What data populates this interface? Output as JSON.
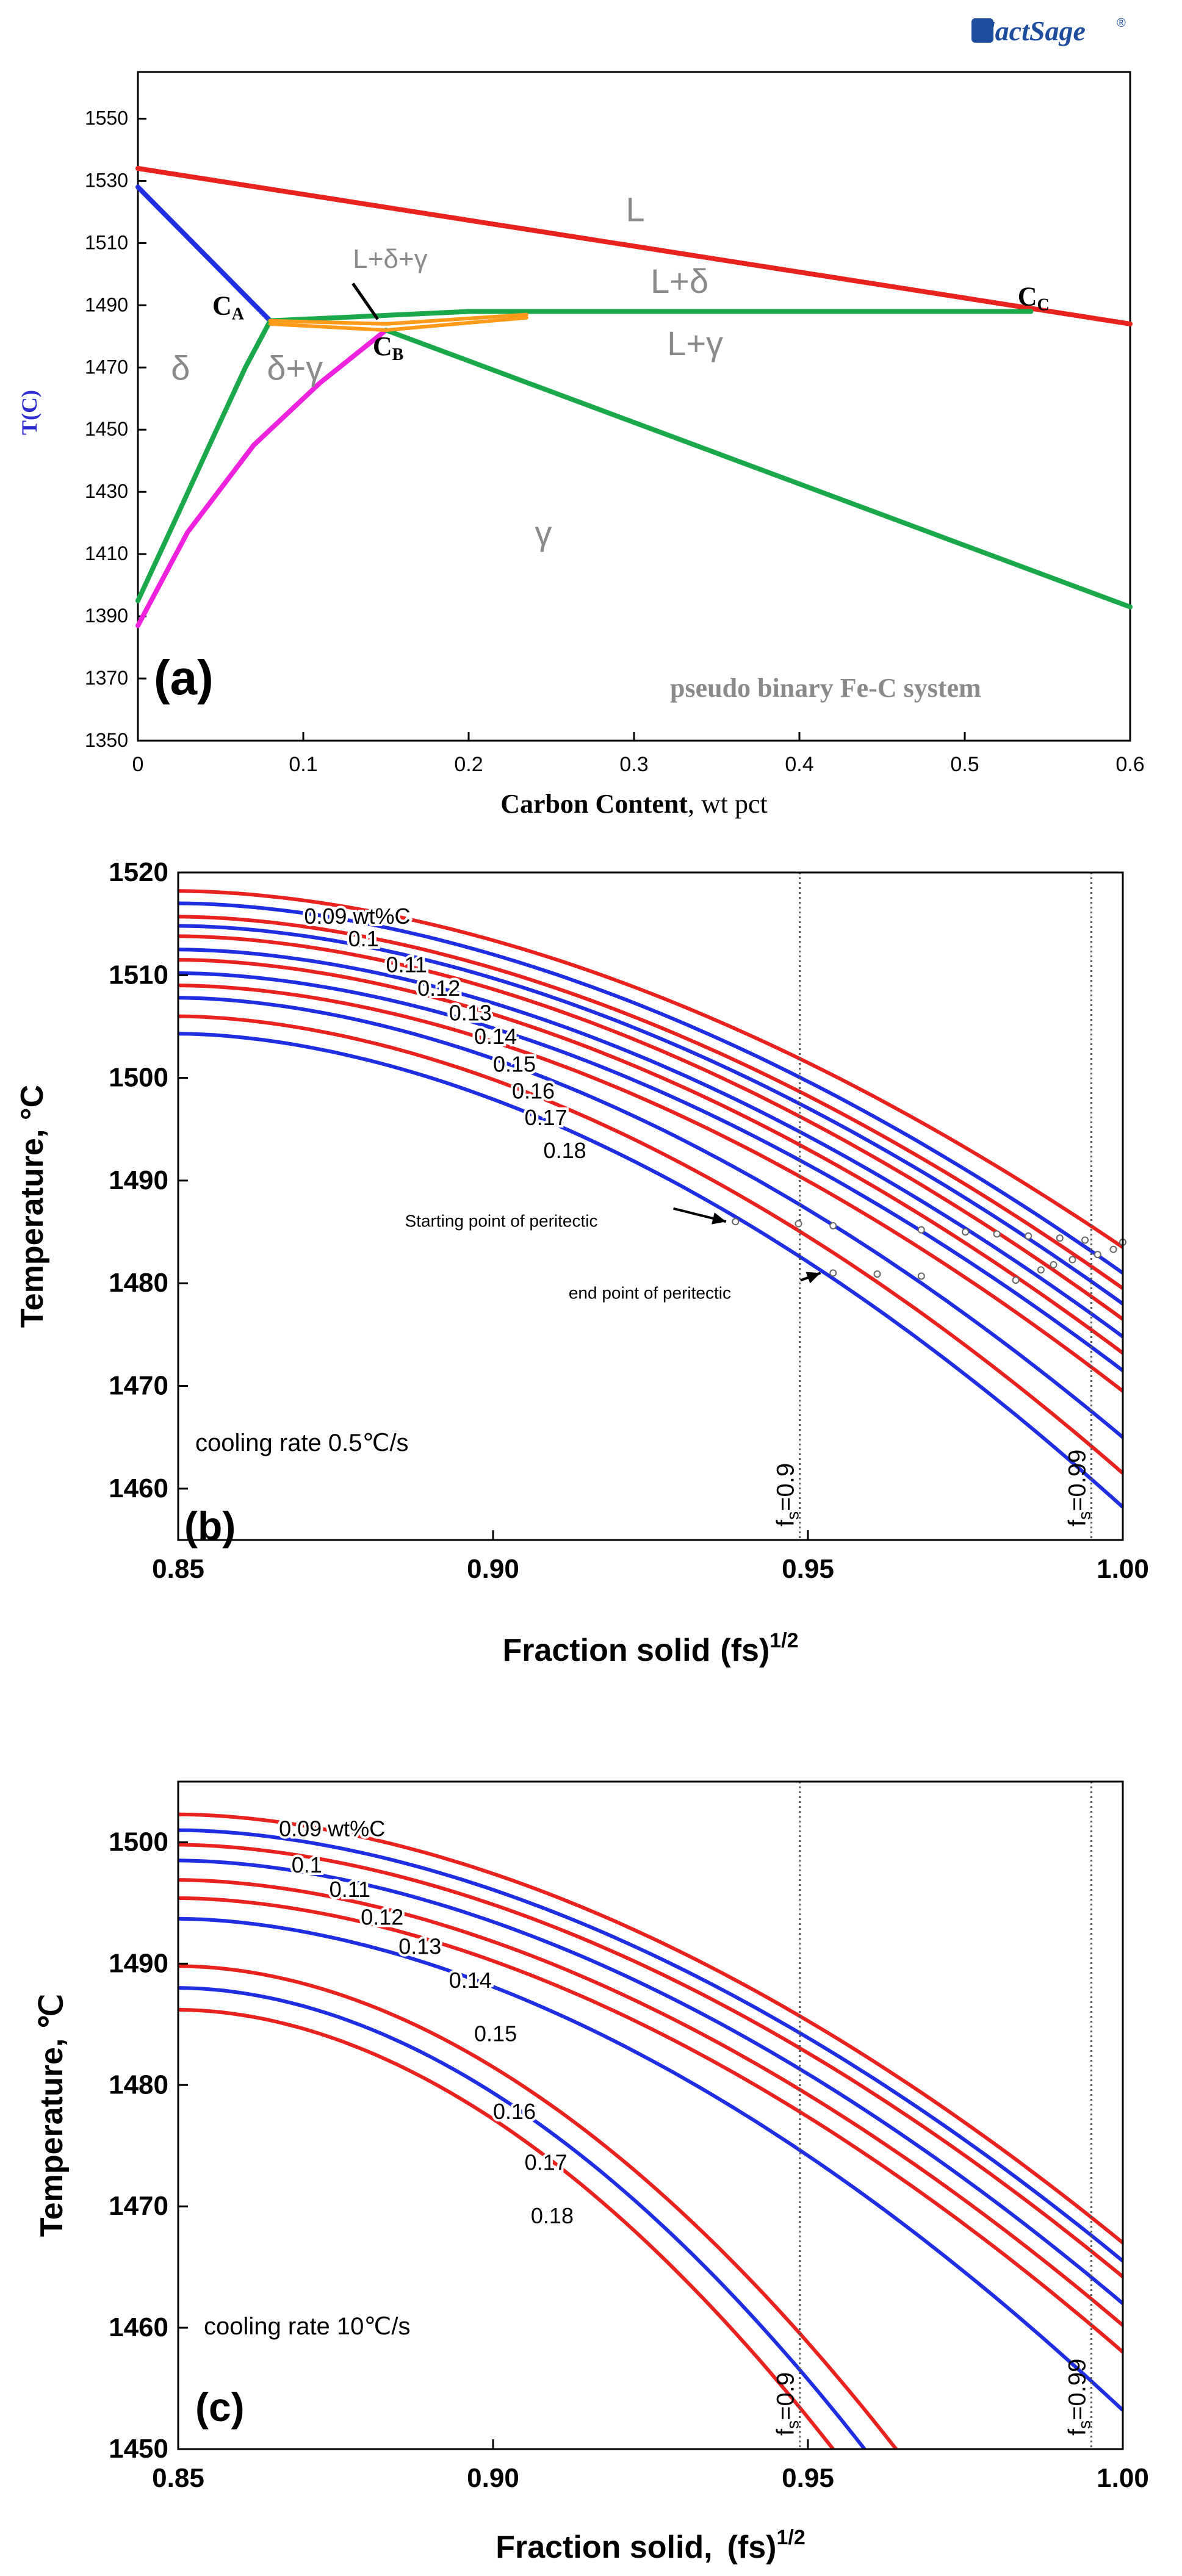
{
  "figure": {
    "logo_text": "FactSage",
    "logo_mark": "®"
  },
  "colors": {
    "red": "#e8231f",
    "blue": "#1f2ee0",
    "green": "#1aa84a",
    "magenta": "#ee22dd",
    "orange": "#ff9a1a",
    "label_gray": "#8a8a8a",
    "ylabel_blue": "#2c2cd0"
  },
  "chart_data": [
    {
      "type": "line",
      "panel_label": "(a)",
      "title": "pseudo binary Fe-C system",
      "xlabel": "Carbon Content",
      "xlabel_unit": ", wt pct",
      "ylabel": "T(C)",
      "xlim": [
        0,
        0.6
      ],
      "ylim": [
        1350,
        1565
      ],
      "xticks": [
        0,
        0.1,
        0.2,
        0.3,
        0.4,
        0.5,
        0.6
      ],
      "xtick_labels": [
        "0",
        "0.1",
        "0.2",
        "0.3",
        "0.4",
        "0.5",
        "0.6"
      ],
      "yticks": [
        1350,
        1370,
        1390,
        1410,
        1430,
        1450,
        1470,
        1490,
        1510,
        1530,
        1550
      ],
      "series": [
        {
          "name": "liquidus",
          "color": "red",
          "points": [
            [
              0,
              1534
            ],
            [
              0.6,
              1484
            ]
          ]
        },
        {
          "name": "delta liquidus",
          "color": "blue",
          "points": [
            [
              0,
              1528
            ],
            [
              0.08,
              1485
            ]
          ]
        },
        {
          "name": "delta solidus",
          "color": "green",
          "points": [
            [
              0,
              1395
            ],
            [
              0.02,
              1418
            ],
            [
              0.045,
              1447
            ],
            [
              0.065,
              1470
            ],
            [
              0.08,
              1485
            ]
          ]
        },
        {
          "name": "delta/gamma boundary",
          "color": "magenta",
          "points": [
            [
              0,
              1387
            ],
            [
              0.03,
              1417
            ],
            [
              0.07,
              1445
            ],
            [
              0.11,
              1465
            ],
            [
              0.15,
              1482
            ]
          ]
        },
        {
          "name": "peritectic line",
          "color": "green",
          "points": [
            [
              0.08,
              1485
            ],
            [
              0.2,
              1488
            ],
            [
              0.54,
              1488
            ]
          ]
        },
        {
          "name": "gamma solidus",
          "color": "green",
          "points": [
            [
              0.15,
              1482
            ],
            [
              0.6,
              1393
            ]
          ]
        },
        {
          "name": "L+delta+gamma lower",
          "color": "orange",
          "points": [
            [
              0.08,
              1484
            ],
            [
              0.15,
              1482
            ],
            [
              0.235,
              1486
            ]
          ]
        },
        {
          "name": "L+delta+gamma upper",
          "color": "orange",
          "points": [
            [
              0.08,
              1485
            ],
            [
              0.15,
              1484
            ],
            [
              0.235,
              1487
            ]
          ]
        }
      ],
      "annotations": [
        {
          "text": "L",
          "x": 0.295,
          "y": 1517
        },
        {
          "text": "L+δ",
          "x": 0.31,
          "y": 1494
        },
        {
          "text": "L+δ+γ",
          "x": 0.13,
          "y": 1502
        },
        {
          "text": "L+γ",
          "x": 0.32,
          "y": 1474
        },
        {
          "text": "δ",
          "x": 0.02,
          "y": 1466
        },
        {
          "text": "δ+γ",
          "x": 0.078,
          "y": 1466
        },
        {
          "text": "γ",
          "x": 0.24,
          "y": 1413
        },
        {
          "text": "C",
          "sub": "A",
          "x": 0.045,
          "y": 1487
        },
        {
          "text": "C",
          "sub": "B",
          "x": 0.142,
          "y": 1474
        },
        {
          "text": "C",
          "sub": "C",
          "x": 0.532,
          "y": 1490
        }
      ]
    },
    {
      "type": "line",
      "panel_label": "(b)",
      "note": "cooling rate 0.5℃/s",
      "xlabel": "Fraction solid",
      "xlabel_var": "(fs)",
      "xlabel_exp": "1/2",
      "ylabel": "Temperature, °C",
      "xlim": [
        0.85,
        1.0
      ],
      "ylim": [
        1455,
        1520
      ],
      "xticks": [
        0.85,
        0.9,
        0.95,
        1.0
      ],
      "xtick_labels": [
        "0.85",
        "0.90",
        "0.95",
        "1.00"
      ],
      "yticks": [
        1460,
        1470,
        1480,
        1490,
        1500,
        1510,
        1520
      ],
      "vlines": [
        {
          "x": 0.9487,
          "label": "fs=0.9",
          "label_base": "f",
          "label_sub": "s",
          "label_rest": "=0.9"
        },
        {
          "x": 0.995,
          "label": "fs=0.99",
          "label_base": "f",
          "label_sub": "s",
          "label_rest": "=0.99"
        }
      ],
      "curve_labels": [
        "0.09 wt%C",
        "0.1",
        "0.11",
        "0.12",
        "0.13",
        "0.14",
        "0.15",
        "0.16",
        "0.17",
        "0.18"
      ],
      "series": [
        {
          "name": "0.09 wt%C",
          "color": "red",
          "t_start": 1518.2,
          "t_end": 1483.5
        },
        {
          "name": "0.09 wt%C",
          "color": "blue",
          "t_start": 1517.0,
          "t_end": 1481.0
        },
        {
          "name": "0.1",
          "color": "red",
          "t_start": 1515.7,
          "t_end": 1479.5
        },
        {
          "name": "0.1",
          "color": "blue",
          "t_start": 1514.8,
          "t_end": 1478.0
        },
        {
          "name": "0.11",
          "color": "red",
          "t_start": 1513.8,
          "t_end": 1476.5
        },
        {
          "name": "0.11",
          "color": "blue",
          "t_start": 1512.5,
          "t_end": 1474.8
        },
        {
          "name": "0.12",
          "color": "red",
          "t_start": 1511.5,
          "t_end": 1473.2
        },
        {
          "name": "0.12",
          "color": "blue",
          "t_start": 1510.2,
          "t_end": 1471.5
        },
        {
          "name": "0.13",
          "color": "red",
          "t_start": 1509.0,
          "t_end": 1469.5
        },
        {
          "name": "0.14",
          "color": "blue",
          "t_start": 1507.8,
          "t_end": 1465.0
        },
        {
          "name": "0.15",
          "color": "red",
          "t_start": 1506.0,
          "t_end": 1461.5
        },
        {
          "name": "0.16",
          "color": "blue",
          "t_start": 1504.3,
          "t_end": 1458.2
        }
      ],
      "markers": [
        [
          0.9385,
          1486
        ],
        [
          0.9485,
          1485.8
        ],
        [
          0.954,
          1485.6
        ],
        [
          0.968,
          1485.2
        ],
        [
          0.975,
          1485
        ],
        [
          0.98,
          1484.8
        ],
        [
          0.985,
          1484.6
        ],
        [
          0.99,
          1484.4
        ],
        [
          0.994,
          1484.2
        ],
        [
          1.0,
          1484
        ],
        [
          0.954,
          1481
        ],
        [
          0.961,
          1480.9
        ],
        [
          0.968,
          1480.7
        ],
        [
          0.983,
          1480.3
        ],
        [
          0.987,
          1481.3
        ],
        [
          0.989,
          1481.8
        ],
        [
          0.992,
          1482.3
        ],
        [
          0.996,
          1482.8
        ],
        [
          0.9985,
          1483.3
        ]
      ],
      "annotations": [
        {
          "text": "Starting point of peritectic",
          "x": 0.886,
          "y": 1485.5,
          "arrow_to": [
            0.937,
            1486
          ]
        },
        {
          "text": "end point of peritectic",
          "x": 0.912,
          "y": 1478.5,
          "arrow_to": [
            0.952,
            1481
          ]
        }
      ]
    },
    {
      "type": "line",
      "panel_label": "(c)",
      "note": "cooling rate 10℃/s",
      "xlabel": "Fraction solid,",
      "xlabel_var": "(fs)",
      "xlabel_exp": "1/2",
      "ylabel": "Temperature, ℃",
      "xlim": [
        0.85,
        1.0
      ],
      "ylim": [
        1450,
        1505
      ],
      "xticks": [
        0.85,
        0.9,
        0.95,
        1.0
      ],
      "xtick_labels": [
        "0.85",
        "0.90",
        "0.95",
        "1.00"
      ],
      "yticks": [
        1450,
        1460,
        1470,
        1480,
        1490,
        1500
      ],
      "vlines": [
        {
          "x": 0.9487,
          "label": "fs=0.9",
          "label_base": "f",
          "label_sub": "s",
          "label_rest": "=0.9"
        },
        {
          "x": 0.995,
          "label": "fs=0.99",
          "label_base": "f",
          "label_sub": "s",
          "label_rest": "=0.99"
        }
      ],
      "curve_labels": [
        "0.09 wt%C",
        "0.1",
        "0.11",
        "0.12",
        "0.13",
        "0.14",
        "0.15",
        "0.16",
        "0.17",
        "0.18"
      ],
      "series": [
        {
          "name": "0.09 wt%C",
          "color": "red",
          "t_start": 1502.3,
          "t_end": 1467.0
        },
        {
          "name": "0.09 wt%C",
          "color": "blue",
          "t_start": 1501.0,
          "t_end": 1465.5
        },
        {
          "name": "0.1",
          "color": "red",
          "t_start": 1499.8,
          "t_end": 1464.2
        },
        {
          "name": "0.11",
          "color": "blue",
          "t_start": 1498.5,
          "t_end": 1462.0
        },
        {
          "name": "0.12",
          "color": "red",
          "t_start": 1496.9,
          "t_end": 1460.2
        },
        {
          "name": "0.13",
          "color": "red",
          "t_start": 1495.4,
          "t_end": 1458.0
        },
        {
          "name": "0.14",
          "color": "blue",
          "t_start": 1493.7,
          "t_end": 1453.2
        }
      ],
      "steep_series": [
        {
          "name": "0.16",
          "color": "red",
          "t_start": 1489.8,
          "x_end": 0.964
        },
        {
          "name": "0.17",
          "color": "blue",
          "t_start": 1488.0,
          "x_end": 0.959
        },
        {
          "name": "0.18",
          "color": "red",
          "t_start": 1486.2,
          "x_end": 0.954
        }
      ]
    }
  ]
}
